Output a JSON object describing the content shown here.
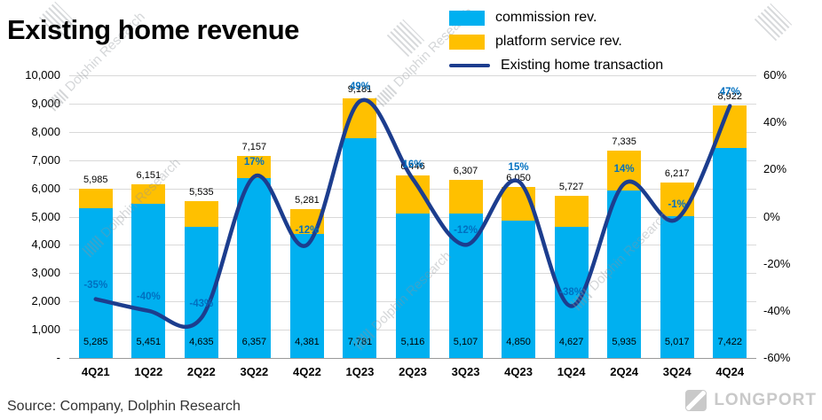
{
  "title": "Existing home revenue",
  "source": "Source: Company, Dolphin Research",
  "brand": "LONGPORT",
  "watermark": {
    "text": "Dolphin Research"
  },
  "chart_data": {
    "type": "bar",
    "subtype": "stacked-bars-with-line",
    "categories": [
      "4Q21",
      "1Q22",
      "2Q22",
      "3Q22",
      "4Q22",
      "1Q23",
      "2Q23",
      "3Q23",
      "4Q23",
      "1Q24",
      "2Q24",
      "3Q24",
      "4Q24"
    ],
    "series": [
      {
        "name": "commission rev.",
        "type": "bar",
        "color": "#00B0F0",
        "values": [
          5285,
          5451,
          4635,
          6357,
          4381,
          7781,
          5116,
          5107,
          4850,
          4627,
          5935,
          5017,
          7422
        ],
        "labels": [
          "5,285",
          "5,451",
          "4,635",
          "6,357",
          "4,381",
          "7,781",
          "5,116",
          "5,107",
          "4,850",
          "4,627",
          "5,935",
          "5,017",
          "7,422"
        ]
      },
      {
        "name": "platform service rev.",
        "type": "bar",
        "color": "#FFC000",
        "values": [
          700,
          700,
          900,
          800,
          900,
          1400,
          1330,
          1200,
          1200,
          1100,
          1400,
          1200,
          1500
        ]
      },
      {
        "name": "Existing home transaction",
        "type": "line",
        "axis": "right",
        "color": "#1c3d8e",
        "label_color": "#0070C0",
        "values": [
          -35,
          -40,
          -43,
          17,
          -12,
          49,
          16,
          -12,
          15,
          -38,
          14,
          -1,
          47
        ],
        "labels": [
          "-35%",
          "-40%",
          "-43%",
          "17%",
          "-12%",
          "49%",
          "16%",
          "-12%",
          "15%",
          "-38%",
          "14%",
          "-1%",
          "47%"
        ]
      }
    ],
    "totals_labels": [
      "5,985",
      "6,151",
      "5,535",
      "7,157",
      "5,281",
      "9,181",
      "6,446",
      "6,307",
      "6,050",
      "5,727",
      "7,335",
      "6,217",
      "8,922"
    ],
    "left_axis": {
      "min": 0,
      "max": 10000,
      "ticks": [
        "10,000",
        "9,000",
        "8,000",
        "7,000",
        "6,000",
        "5,000",
        "4,000",
        "3,000",
        "2,000",
        "1,000",
        "-"
      ]
    },
    "right_axis": {
      "min": -60,
      "max": 60,
      "ticks": [
        "60%",
        "40%",
        "20%",
        "0%",
        "-20%",
        "-40%",
        "-60%"
      ]
    },
    "grid": true,
    "legend_position": "top-right"
  }
}
